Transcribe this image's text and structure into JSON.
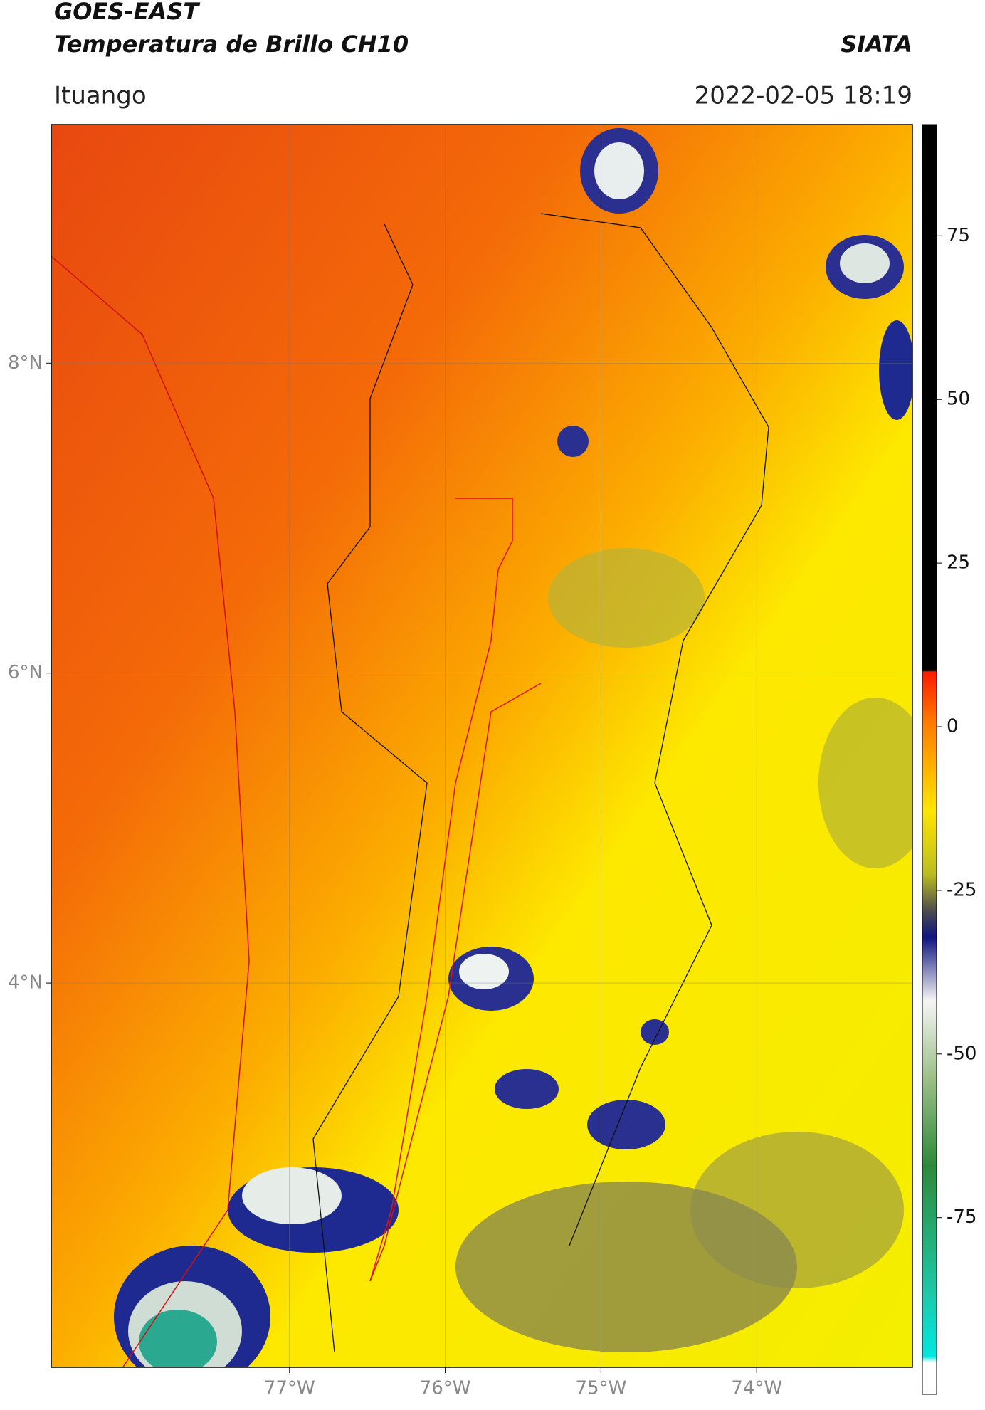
{
  "header": {
    "title_line1": "GOES-EAST",
    "title_line2": "Temperatura de Brillo CH10",
    "source": "SIATA",
    "location": "Ituango",
    "datetime": "2022-02-05 18:19"
  },
  "map": {
    "xlim": [
      -78.53,
      -73.0
    ],
    "ylim": [
      1.52,
      9.54
    ],
    "lat_ticks": [
      {
        "value": 8,
        "label": "8°N"
      },
      {
        "value": 6,
        "label": "6°N"
      },
      {
        "value": 4,
        "label": "4°N"
      }
    ],
    "lon_ticks": [
      {
        "value": -77,
        "label": "77°W"
      },
      {
        "value": -76,
        "label": "76°W"
      },
      {
        "value": -75,
        "label": "75°W"
      },
      {
        "value": -74,
        "label": "74°W"
      }
    ]
  },
  "colorbar": {
    "lim": [
      -102,
      92
    ],
    "ticks": [
      75,
      50,
      25,
      0,
      -25,
      -50,
      -75
    ]
  }
}
